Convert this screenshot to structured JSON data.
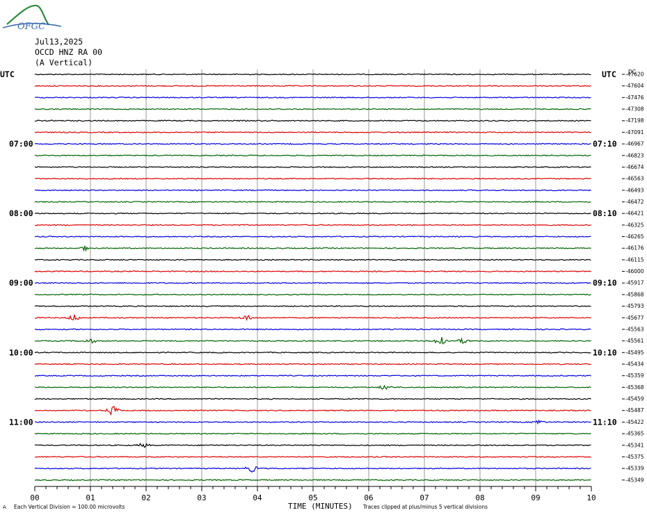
{
  "header": {
    "logo_text": "OFGC",
    "date": "Jul13,2025",
    "station": "OCCD HNZ RA 00",
    "component": "(A Vertical)"
  },
  "footer": {
    "scale_note": "Each Vertical Division = 100.00 microvolts",
    "xlabel": "TIME (MINUTES)",
    "clip_note": "Traces clipped at plus/minus 5 vertical divisions"
  },
  "chart_data": {
    "type": "line",
    "title": "",
    "xlabel": "TIME (MINUTES)",
    "ylabel": "",
    "xlim": [
      0,
      10
    ],
    "x_ticks": [
      "00",
      "01",
      "02",
      "03",
      "04",
      "05",
      "06",
      "07",
      "08",
      "09",
      "10"
    ],
    "left_axis_label": "UTC",
    "right_axis_label": "UTC",
    "right_top_unit": "DC",
    "left_hour_labels": [
      {
        "trace": 6,
        "label": "07:00"
      },
      {
        "trace": 12,
        "label": "08:00"
      },
      {
        "trace": 18,
        "label": "09:00"
      },
      {
        "trace": 24,
        "label": "10:00"
      },
      {
        "trace": 30,
        "label": "11:00"
      }
    ],
    "right_hour_labels": [
      {
        "trace": 6,
        "label": "07:10"
      },
      {
        "trace": 12,
        "label": "08:10"
      },
      {
        "trace": 18,
        "label": "09:10"
      },
      {
        "trace": 24,
        "label": "10:10"
      },
      {
        "trace": 30,
        "label": "11:10"
      }
    ],
    "trace_colors": [
      "#000000",
      "#e00000",
      "#0000e0",
      "#006400"
    ],
    "dc_offsets": [
      -47620,
      -47604,
      -47476,
      -47308,
      -47198,
      -47091,
      -46967,
      -46823,
      -46674,
      -46563,
      -46493,
      -46472,
      -46421,
      -46325,
      -46265,
      -46176,
      -46115,
      -46000,
      -45917,
      -45868,
      -45793,
      -45677,
      -45563,
      -45561,
      -45495,
      -45434,
      -45359,
      -45368,
      -45459,
      -45487,
      -45422,
      -45365,
      -45341,
      -45375,
      -45339,
      -45349
    ],
    "events": [
      {
        "trace": 15,
        "minute": 0.9,
        "amplitude": 0.5
      },
      {
        "trace": 21,
        "minute": 0.7,
        "amplitude": 0.8
      },
      {
        "trace": 21,
        "minute": 3.8,
        "amplitude": 0.6
      },
      {
        "trace": 23,
        "minute": 1.0,
        "amplitude": 0.5
      },
      {
        "trace": 23,
        "minute": 7.3,
        "amplitude": 1.4
      },
      {
        "trace": 23,
        "minute": 7.7,
        "amplitude": 0.6
      },
      {
        "trace": 27,
        "minute": 6.3,
        "amplitude": 0.6
      },
      {
        "trace": 29,
        "minute": 1.4,
        "amplitude": 1.2
      },
      {
        "trace": 30,
        "minute": 9.05,
        "amplitude": 0.5
      },
      {
        "trace": 32,
        "minute": 1.95,
        "amplitude": 0.5
      },
      {
        "trace": 34,
        "minute": 3.9,
        "amplitude": 0.8
      }
    ]
  }
}
